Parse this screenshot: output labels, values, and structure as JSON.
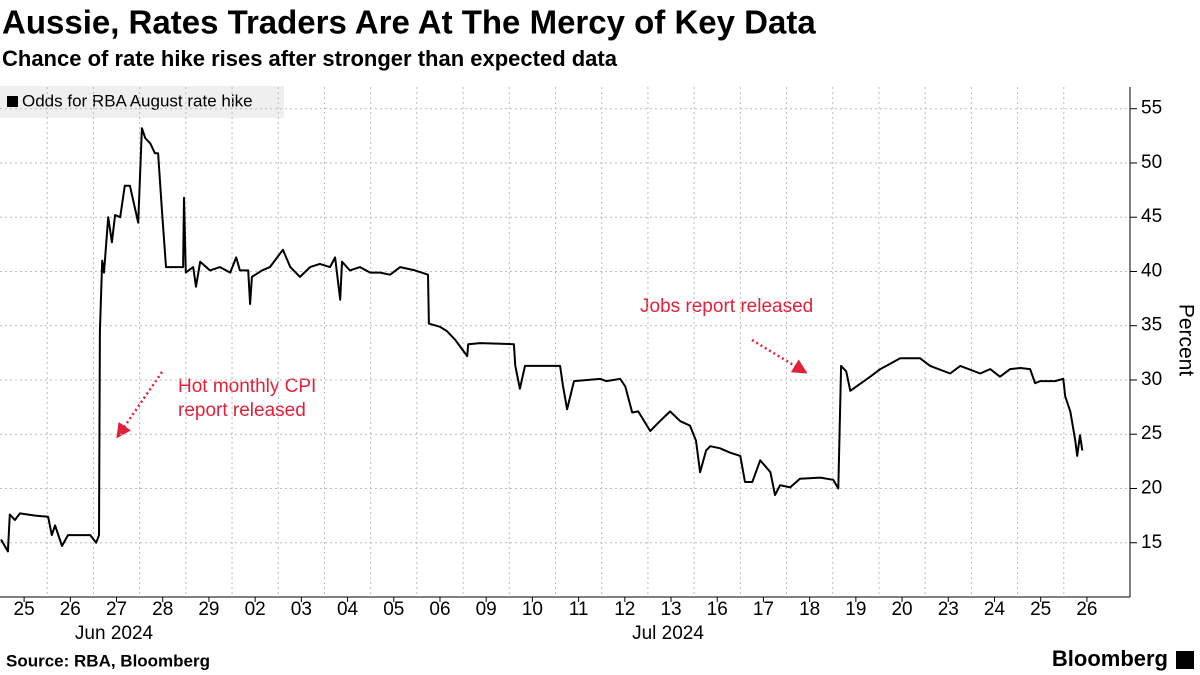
{
  "chart_data": {
    "type": "line",
    "title": "Aussie, Rates Traders Are At The Mercy of Key Data",
    "subtitle": "Chance of rate hike rises after stronger than expected data",
    "y_label": "Percent",
    "source": "Source: RBA, Bloomberg",
    "brand": "Bloomberg",
    "month_labels": [
      "Jun 2024",
      "Jul 2024"
    ],
    "annotations": [
      {
        "text": [
          "Hot monthly CPI",
          "report released"
        ],
        "color": "#e3203a"
      },
      {
        "text": [
          "Jobs report released"
        ],
        "color": "#e3203a"
      }
    ],
    "xlim": [
      0,
      24
    ],
    "xticks": [
      {
        "value": 0.5,
        "label": "25"
      },
      {
        "value": 1.5,
        "label": "26"
      },
      {
        "value": 2.5,
        "label": "27"
      },
      {
        "value": 3.5,
        "label": "28"
      },
      {
        "value": 4.5,
        "label": "29"
      },
      {
        "value": 5.5,
        "label": "02"
      },
      {
        "value": 6.5,
        "label": "03"
      },
      {
        "value": 7.5,
        "label": "04"
      },
      {
        "value": 8.5,
        "label": "05"
      },
      {
        "value": 9.5,
        "label": "06"
      },
      {
        "value": 10.5,
        "label": "09"
      },
      {
        "value": 11.5,
        "label": "10"
      },
      {
        "value": 12.5,
        "label": "11"
      },
      {
        "value": 13.5,
        "label": "12"
      },
      {
        "value": 14.5,
        "label": "13"
      },
      {
        "value": 15.5,
        "label": "16"
      },
      {
        "value": 16.5,
        "label": "17"
      },
      {
        "value": 17.5,
        "label": "18"
      },
      {
        "value": 18.5,
        "label": "19"
      },
      {
        "value": 19.5,
        "label": "20"
      },
      {
        "value": 20.5,
        "label": "23"
      },
      {
        "value": 21.5,
        "label": "24"
      },
      {
        "value": 22.5,
        "label": "25"
      },
      {
        "value": 23.5,
        "label": "26"
      }
    ],
    "ylim": [
      10,
      57
    ],
    "yticks": [
      15,
      20,
      25,
      30,
      35,
      40,
      45,
      50,
      55
    ],
    "grid": true,
    "legend": "top-left",
    "series": [
      {
        "name": "Odds for RBA August rate hike",
        "color": "#000000",
        "x": [
          0,
          0.15,
          0.19,
          0.3,
          0.41,
          0.74,
          1.02,
          1.1,
          1.17,
          1.32,
          1.45,
          1.93,
          2.06,
          2.12,
          2.14,
          2.19,
          2.23,
          2.32,
          2.4,
          2.47,
          2.58,
          2.68,
          2.79,
          2.97,
          3.05,
          3.12,
          3.23,
          3.33,
          3.4,
          3.48,
          3.57,
          3.77,
          3.94,
          3.96,
          4.0,
          4.16,
          4.22,
          4.31,
          4.52,
          4.74,
          4.96,
          5.09,
          5.17,
          5.35,
          5.39,
          5.43,
          5.65,
          5.82,
          6.1,
          6.26,
          6.47,
          6.69,
          6.9,
          7.12,
          7.23,
          7.34,
          7.38,
          7.55,
          7.77,
          7.99,
          8.2,
          8.42,
          8.64,
          8.96,
          9.24,
          9.26,
          9.5,
          9.65,
          9.83,
          10.09,
          10.11,
          10.37,
          11.1,
          11.13,
          11.23,
          11.34,
          12.1,
          12.16,
          12.25,
          12.4,
          12.97,
          13.1,
          13.4,
          13.51,
          13.66,
          13.79,
          14.05,
          14.26,
          14.48,
          14.7,
          14.91,
          15.04,
          15.13,
          15.26,
          15.35,
          15.56,
          15.78,
          16.0,
          16.1,
          16.26,
          16.43,
          16.65,
          16.75,
          16.86,
          17.08,
          17.29,
          17.73,
          18.01,
          18.12,
          18.18,
          18.29,
          18.38,
          18.81,
          19.03,
          19.46,
          19.89,
          20.11,
          20.54,
          20.76,
          21.19,
          21.41,
          21.62,
          21.84,
          22.06,
          22.27,
          22.38,
          22.49,
          22.81,
          22.99,
          23.03,
          23.14,
          23.25,
          23.29,
          23.35,
          23.4
        ],
        "values": [
          15.3,
          14.2,
          17.6,
          17.1,
          17.7,
          17.5,
          17.4,
          15.7,
          16.6,
          14.7,
          15.7,
          15.7,
          15.0,
          15.7,
          34.5,
          41.0,
          39.9,
          45.0,
          42.7,
          45.2,
          45.0,
          47.9,
          47.9,
          44.5,
          53.2,
          52.3,
          51.8,
          50.9,
          50.9,
          45.8,
          40.4,
          40.4,
          40.4,
          46.8,
          39.9,
          40.4,
          38.6,
          40.9,
          40.1,
          40.4,
          39.9,
          41.3,
          40.1,
          40.1,
          37.0,
          39.5,
          40.1,
          40.4,
          42.0,
          40.4,
          39.5,
          40.4,
          40.7,
          40.4,
          41.3,
          37.4,
          40.9,
          40.1,
          40.4,
          39.9,
          39.9,
          39.7,
          40.4,
          40.1,
          39.7,
          35.2,
          34.9,
          34.5,
          33.7,
          32.2,
          33.3,
          33.4,
          33.3,
          31.3,
          29.2,
          31.3,
          31.3,
          29.5,
          27.3,
          29.9,
          30.1,
          29.9,
          30.1,
          29.4,
          27.0,
          27.1,
          25.3,
          26.2,
          27.1,
          26.2,
          25.8,
          24.4,
          21.5,
          23.5,
          23.9,
          23.7,
          23.3,
          23.0,
          20.6,
          20.6,
          22.6,
          21.5,
          19.4,
          20.3,
          20.1,
          20.9,
          21.0,
          20.8,
          20.0,
          31.3,
          30.8,
          29.0,
          30.3,
          31.0,
          32.0,
          32.0,
          31.3,
          30.6,
          31.3,
          30.6,
          31.0,
          30.3,
          31.0,
          31.1,
          31.0,
          29.7,
          29.9,
          29.9,
          30.1,
          28.5,
          27.1,
          24.4,
          23.0,
          24.9,
          23.5
        ]
      }
    ]
  }
}
